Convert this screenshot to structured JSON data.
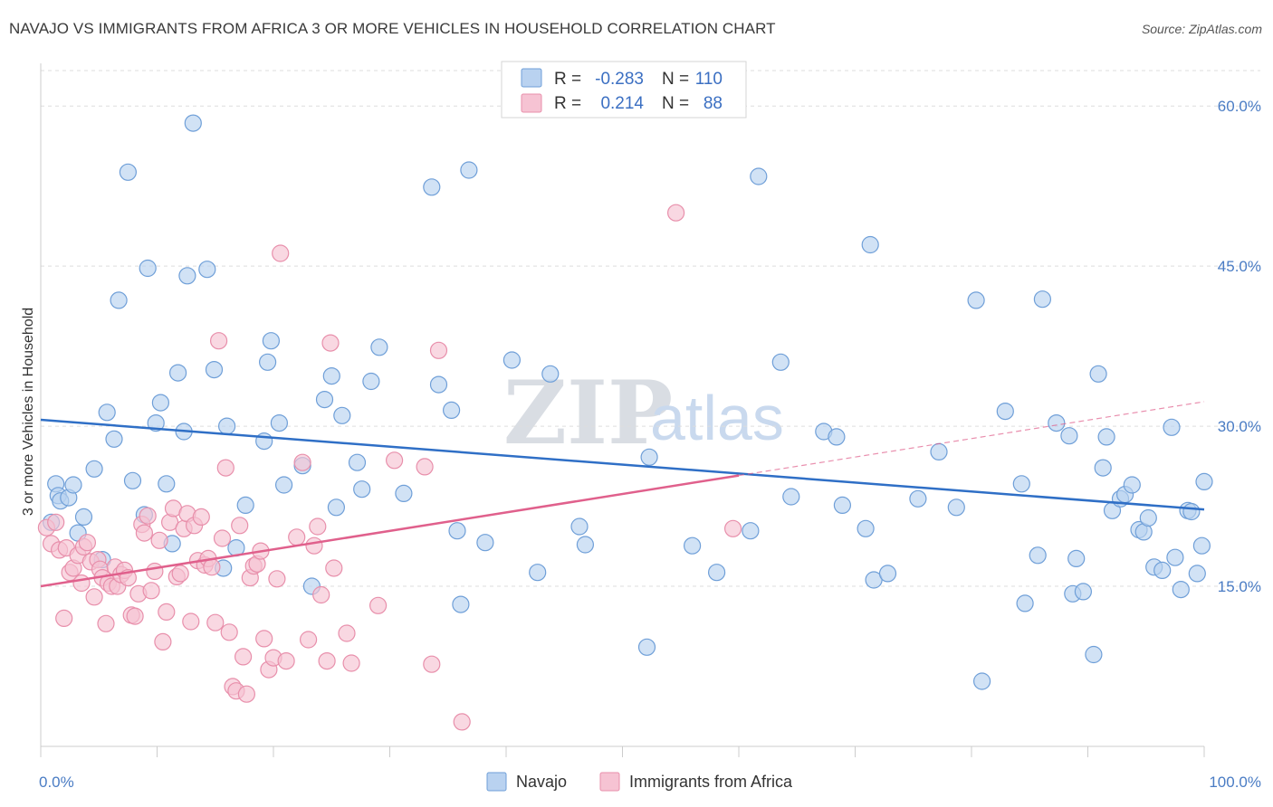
{
  "title": "NAVAJO VS IMMIGRANTS FROM AFRICA 3 OR MORE VEHICLES IN HOUSEHOLD CORRELATION CHART",
  "source": "Source: ZipAtlas.com",
  "watermark": {
    "zip": "ZIP",
    "atlas": "atlas"
  },
  "colors": {
    "navajo_fill": "#b9d2f0",
    "navajo_stroke": "#6f9fd8",
    "navajo_line": "#2f6fc6",
    "africa_fill": "#f6c3d3",
    "africa_stroke": "#e88fab",
    "africa_line": "#e0608c",
    "grid": "#dddddd",
    "tick_label": "#4a7cc4"
  },
  "legend": {
    "rows": [
      {
        "r_label": "R =",
        "r_value": "-0.283",
        "n_label": "N =",
        "n_value": "110"
      },
      {
        "r_label": "R =",
        "r_value": "0.214",
        "n_label": "N =",
        "n_value": "88"
      }
    ]
  },
  "bottom_legend": [
    "Navajo",
    "Immigrants from Africa"
  ],
  "chart_data": {
    "type": "scatter",
    "xlabel": "",
    "ylabel": "3 or more Vehicles in Household",
    "xlim": [
      0,
      100
    ],
    "ylim": [
      0,
      64
    ],
    "x_tick_labels": [
      "0.0%",
      "100.0%"
    ],
    "y_ticks": [
      15,
      30,
      45,
      60
    ],
    "y_tick_labels": [
      "15.0%",
      "30.0%",
      "45.0%",
      "60.0%"
    ],
    "grid": true,
    "legend_position": "top-center",
    "series": [
      {
        "name": "Navajo",
        "trend": {
          "x": [
            0,
            100
          ],
          "y": [
            30.6,
            22.2
          ],
          "style": "solid"
        },
        "points": [
          [
            0.9,
            21.0
          ],
          [
            1.3,
            24.6
          ],
          [
            1.5,
            23.5
          ],
          [
            1.7,
            23.0
          ],
          [
            2.4,
            23.3
          ],
          [
            2.8,
            24.5
          ],
          [
            3.2,
            20.0
          ],
          [
            3.7,
            21.5
          ],
          [
            4.6,
            26.0
          ],
          [
            5.3,
            17.5
          ],
          [
            5.7,
            31.3
          ],
          [
            6.3,
            28.8
          ],
          [
            6.7,
            41.8
          ],
          [
            7.5,
            53.8
          ],
          [
            7.9,
            24.9
          ],
          [
            8.9,
            21.7
          ],
          [
            9.2,
            44.8
          ],
          [
            9.9,
            30.3
          ],
          [
            10.3,
            32.2
          ],
          [
            10.8,
            24.6
          ],
          [
            11.3,
            19.0
          ],
          [
            11.8,
            35.0
          ],
          [
            12.3,
            29.5
          ],
          [
            12.6,
            44.1
          ],
          [
            13.1,
            58.4
          ],
          [
            14.3,
            44.7
          ],
          [
            14.9,
            35.3
          ],
          [
            15.7,
            16.7
          ],
          [
            16.0,
            30.0
          ],
          [
            16.8,
            18.6
          ],
          [
            17.6,
            22.6
          ],
          [
            19.2,
            28.6
          ],
          [
            19.5,
            36.0
          ],
          [
            19.8,
            38.0
          ],
          [
            20.5,
            30.3
          ],
          [
            20.9,
            24.5
          ],
          [
            22.5,
            26.3
          ],
          [
            23.3,
            15.0
          ],
          [
            24.4,
            32.5
          ],
          [
            25.0,
            34.7
          ],
          [
            25.4,
            22.4
          ],
          [
            25.9,
            31.0
          ],
          [
            27.2,
            26.6
          ],
          [
            27.6,
            24.1
          ],
          [
            28.4,
            34.2
          ],
          [
            29.1,
            37.4
          ],
          [
            31.2,
            23.7
          ],
          [
            33.6,
            52.4
          ],
          [
            34.2,
            33.9
          ],
          [
            35.3,
            31.5
          ],
          [
            35.8,
            20.2
          ],
          [
            36.1,
            13.3
          ],
          [
            36.8,
            54.0
          ],
          [
            38.2,
            19.1
          ],
          [
            40.5,
            36.2
          ],
          [
            42.7,
            16.3
          ],
          [
            43.8,
            34.9
          ],
          [
            46.3,
            20.6
          ],
          [
            46.8,
            18.9
          ],
          [
            52.1,
            9.3
          ],
          [
            52.3,
            27.1
          ],
          [
            56.0,
            18.8
          ],
          [
            58.1,
            16.3
          ],
          [
            61.0,
            20.2
          ],
          [
            61.7,
            53.4
          ],
          [
            63.6,
            36.0
          ],
          [
            64.5,
            23.4
          ],
          [
            67.3,
            29.5
          ],
          [
            68.4,
            29.0
          ],
          [
            68.9,
            22.6
          ],
          [
            70.9,
            20.4
          ],
          [
            71.3,
            47.0
          ],
          [
            71.6,
            15.6
          ],
          [
            72.8,
            16.2
          ],
          [
            75.4,
            23.2
          ],
          [
            77.2,
            27.6
          ],
          [
            78.7,
            22.4
          ],
          [
            80.4,
            41.8
          ],
          [
            80.9,
            6.1
          ],
          [
            82.9,
            31.4
          ],
          [
            84.3,
            24.6
          ],
          [
            84.6,
            13.4
          ],
          [
            85.7,
            17.9
          ],
          [
            86.1,
            41.9
          ],
          [
            87.3,
            30.3
          ],
          [
            88.4,
            29.1
          ],
          [
            88.7,
            14.3
          ],
          [
            89.0,
            17.6
          ],
          [
            89.6,
            14.5
          ],
          [
            90.5,
            8.6
          ],
          [
            90.9,
            34.9
          ],
          [
            91.3,
            26.1
          ],
          [
            91.6,
            29.0
          ],
          [
            92.1,
            22.1
          ],
          [
            92.8,
            23.2
          ],
          [
            93.2,
            23.6
          ],
          [
            93.8,
            24.5
          ],
          [
            94.4,
            20.3
          ],
          [
            94.8,
            20.1
          ],
          [
            95.2,
            21.4
          ],
          [
            95.7,
            16.8
          ],
          [
            96.4,
            16.5
          ],
          [
            97.2,
            29.9
          ],
          [
            97.5,
            17.7
          ],
          [
            98.0,
            14.7
          ],
          [
            98.6,
            22.1
          ],
          [
            98.9,
            22.0
          ],
          [
            99.4,
            16.2
          ],
          [
            99.8,
            18.8
          ],
          [
            100.0,
            24.8
          ]
        ]
      },
      {
        "name": "Immigrants from Africa",
        "trend": {
          "x": [
            0,
            100
          ],
          "y": [
            15.0,
            32.3
          ],
          "solid_until_x": 60,
          "style": "solid-then-dashed"
        },
        "points": [
          [
            0.5,
            20.5
          ],
          [
            0.9,
            19.0
          ],
          [
            1.3,
            21.0
          ],
          [
            1.6,
            18.4
          ],
          [
            2.0,
            12.0
          ],
          [
            2.2,
            18.6
          ],
          [
            2.5,
            16.3
          ],
          [
            2.8,
            16.7
          ],
          [
            3.2,
            17.9
          ],
          [
            3.5,
            15.3
          ],
          [
            3.7,
            18.7
          ],
          [
            4.0,
            19.1
          ],
          [
            4.3,
            17.3
          ],
          [
            4.6,
            14.0
          ],
          [
            4.9,
            17.5
          ],
          [
            5.1,
            16.6
          ],
          [
            5.3,
            15.8
          ],
          [
            5.6,
            11.5
          ],
          [
            5.8,
            15.3
          ],
          [
            6.1,
            15.0
          ],
          [
            6.4,
            16.8
          ],
          [
            6.6,
            15.0
          ],
          [
            6.9,
            16.1
          ],
          [
            7.2,
            16.5
          ],
          [
            7.5,
            15.8
          ],
          [
            7.8,
            12.3
          ],
          [
            8.1,
            12.2
          ],
          [
            8.4,
            14.3
          ],
          [
            8.7,
            20.8
          ],
          [
            8.9,
            20.0
          ],
          [
            9.2,
            21.6
          ],
          [
            9.5,
            14.6
          ],
          [
            9.8,
            16.4
          ],
          [
            10.2,
            19.3
          ],
          [
            10.5,
            9.8
          ],
          [
            10.8,
            12.6
          ],
          [
            11.1,
            21.0
          ],
          [
            11.4,
            22.3
          ],
          [
            11.7,
            15.9
          ],
          [
            12.0,
            16.2
          ],
          [
            12.3,
            20.4
          ],
          [
            12.6,
            21.8
          ],
          [
            12.9,
            11.7
          ],
          [
            13.2,
            20.7
          ],
          [
            13.5,
            17.4
          ],
          [
            13.8,
            21.5
          ],
          [
            14.1,
            17.0
          ],
          [
            14.4,
            17.6
          ],
          [
            14.7,
            16.8
          ],
          [
            15.0,
            11.6
          ],
          [
            15.3,
            38.0
          ],
          [
            15.6,
            19.5
          ],
          [
            15.9,
            26.1
          ],
          [
            16.2,
            10.7
          ],
          [
            16.5,
            5.6
          ],
          [
            16.8,
            5.2
          ],
          [
            17.1,
            20.7
          ],
          [
            17.4,
            8.4
          ],
          [
            17.7,
            4.9
          ],
          [
            18.0,
            15.8
          ],
          [
            18.3,
            16.9
          ],
          [
            18.6,
            17.1
          ],
          [
            18.9,
            18.3
          ],
          [
            19.2,
            10.1
          ],
          [
            19.6,
            7.2
          ],
          [
            20.0,
            8.3
          ],
          [
            20.3,
            15.7
          ],
          [
            20.6,
            46.2
          ],
          [
            21.1,
            8.0
          ],
          [
            22.0,
            19.6
          ],
          [
            22.5,
            26.6
          ],
          [
            23.0,
            10.0
          ],
          [
            23.5,
            18.8
          ],
          [
            23.8,
            20.6
          ],
          [
            24.1,
            14.2
          ],
          [
            24.6,
            8.0
          ],
          [
            24.9,
            37.8
          ],
          [
            25.2,
            16.7
          ],
          [
            26.3,
            10.6
          ],
          [
            26.7,
            7.8
          ],
          [
            29.0,
            13.2
          ],
          [
            30.4,
            26.8
          ],
          [
            33.0,
            26.2
          ],
          [
            33.6,
            7.7
          ],
          [
            34.2,
            37.1
          ],
          [
            36.2,
            2.3
          ],
          [
            54.6,
            50.0
          ],
          [
            59.5,
            20.4
          ]
        ]
      }
    ]
  }
}
